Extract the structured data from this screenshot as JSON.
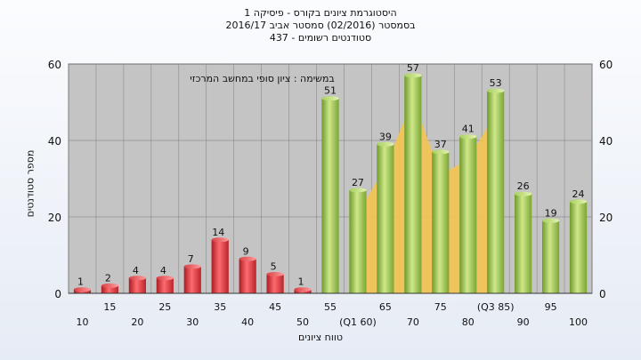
{
  "titles": [
    "היסטוגרמת ציונים בקורס - פיסיקה 1",
    "בסמסטר  (02/2016)  סמסטר אביב 2016/17",
    "סטודנטים רשומים - 437"
  ],
  "chart_data": {
    "type": "bar",
    "title": "היסטוגרמת ציונים בקורס - פיסיקה 1",
    "xlabel": "טווח ציונים",
    "ylabel": "מספר סטודנטים",
    "annotation": "במשימה : ציון סופי במחשב המרכזי",
    "ylim": [
      0,
      60
    ],
    "yticks": [
      0,
      20,
      40,
      60
    ],
    "x_tick_labels": [
      "10",
      "15",
      "20",
      "25",
      "30",
      "35",
      "40",
      "45",
      "50",
      "55",
      "(Q1 60)",
      "65",
      "70",
      "75",
      "80",
      "(Q3 85)",
      "90",
      "95",
      "100"
    ],
    "categories": [
      "10",
      "15",
      "20",
      "25",
      "30",
      "35",
      "40",
      "45",
      "50",
      "55",
      "60",
      "65",
      "70",
      "75",
      "80",
      "85",
      "90",
      "95",
      "100"
    ],
    "values": [
      1,
      2,
      4,
      4,
      7,
      14,
      9,
      5,
      1,
      51,
      27,
      39,
      57,
      37,
      41,
      53,
      26,
      19,
      24
    ],
    "bar_colors": [
      "red",
      "red",
      "red",
      "red",
      "red",
      "red",
      "red",
      "red",
      "red",
      "green",
      "green",
      "green",
      "green",
      "green",
      "green",
      "green",
      "green",
      "green",
      "green"
    ],
    "band": {
      "from": "60",
      "to": "85",
      "color": "#f5c451"
    },
    "grid": true,
    "colors": {
      "red": "#e0363b",
      "green": "#9bc24e",
      "plot_bg": "#c4c4c4",
      "band": "#f5c451"
    }
  }
}
